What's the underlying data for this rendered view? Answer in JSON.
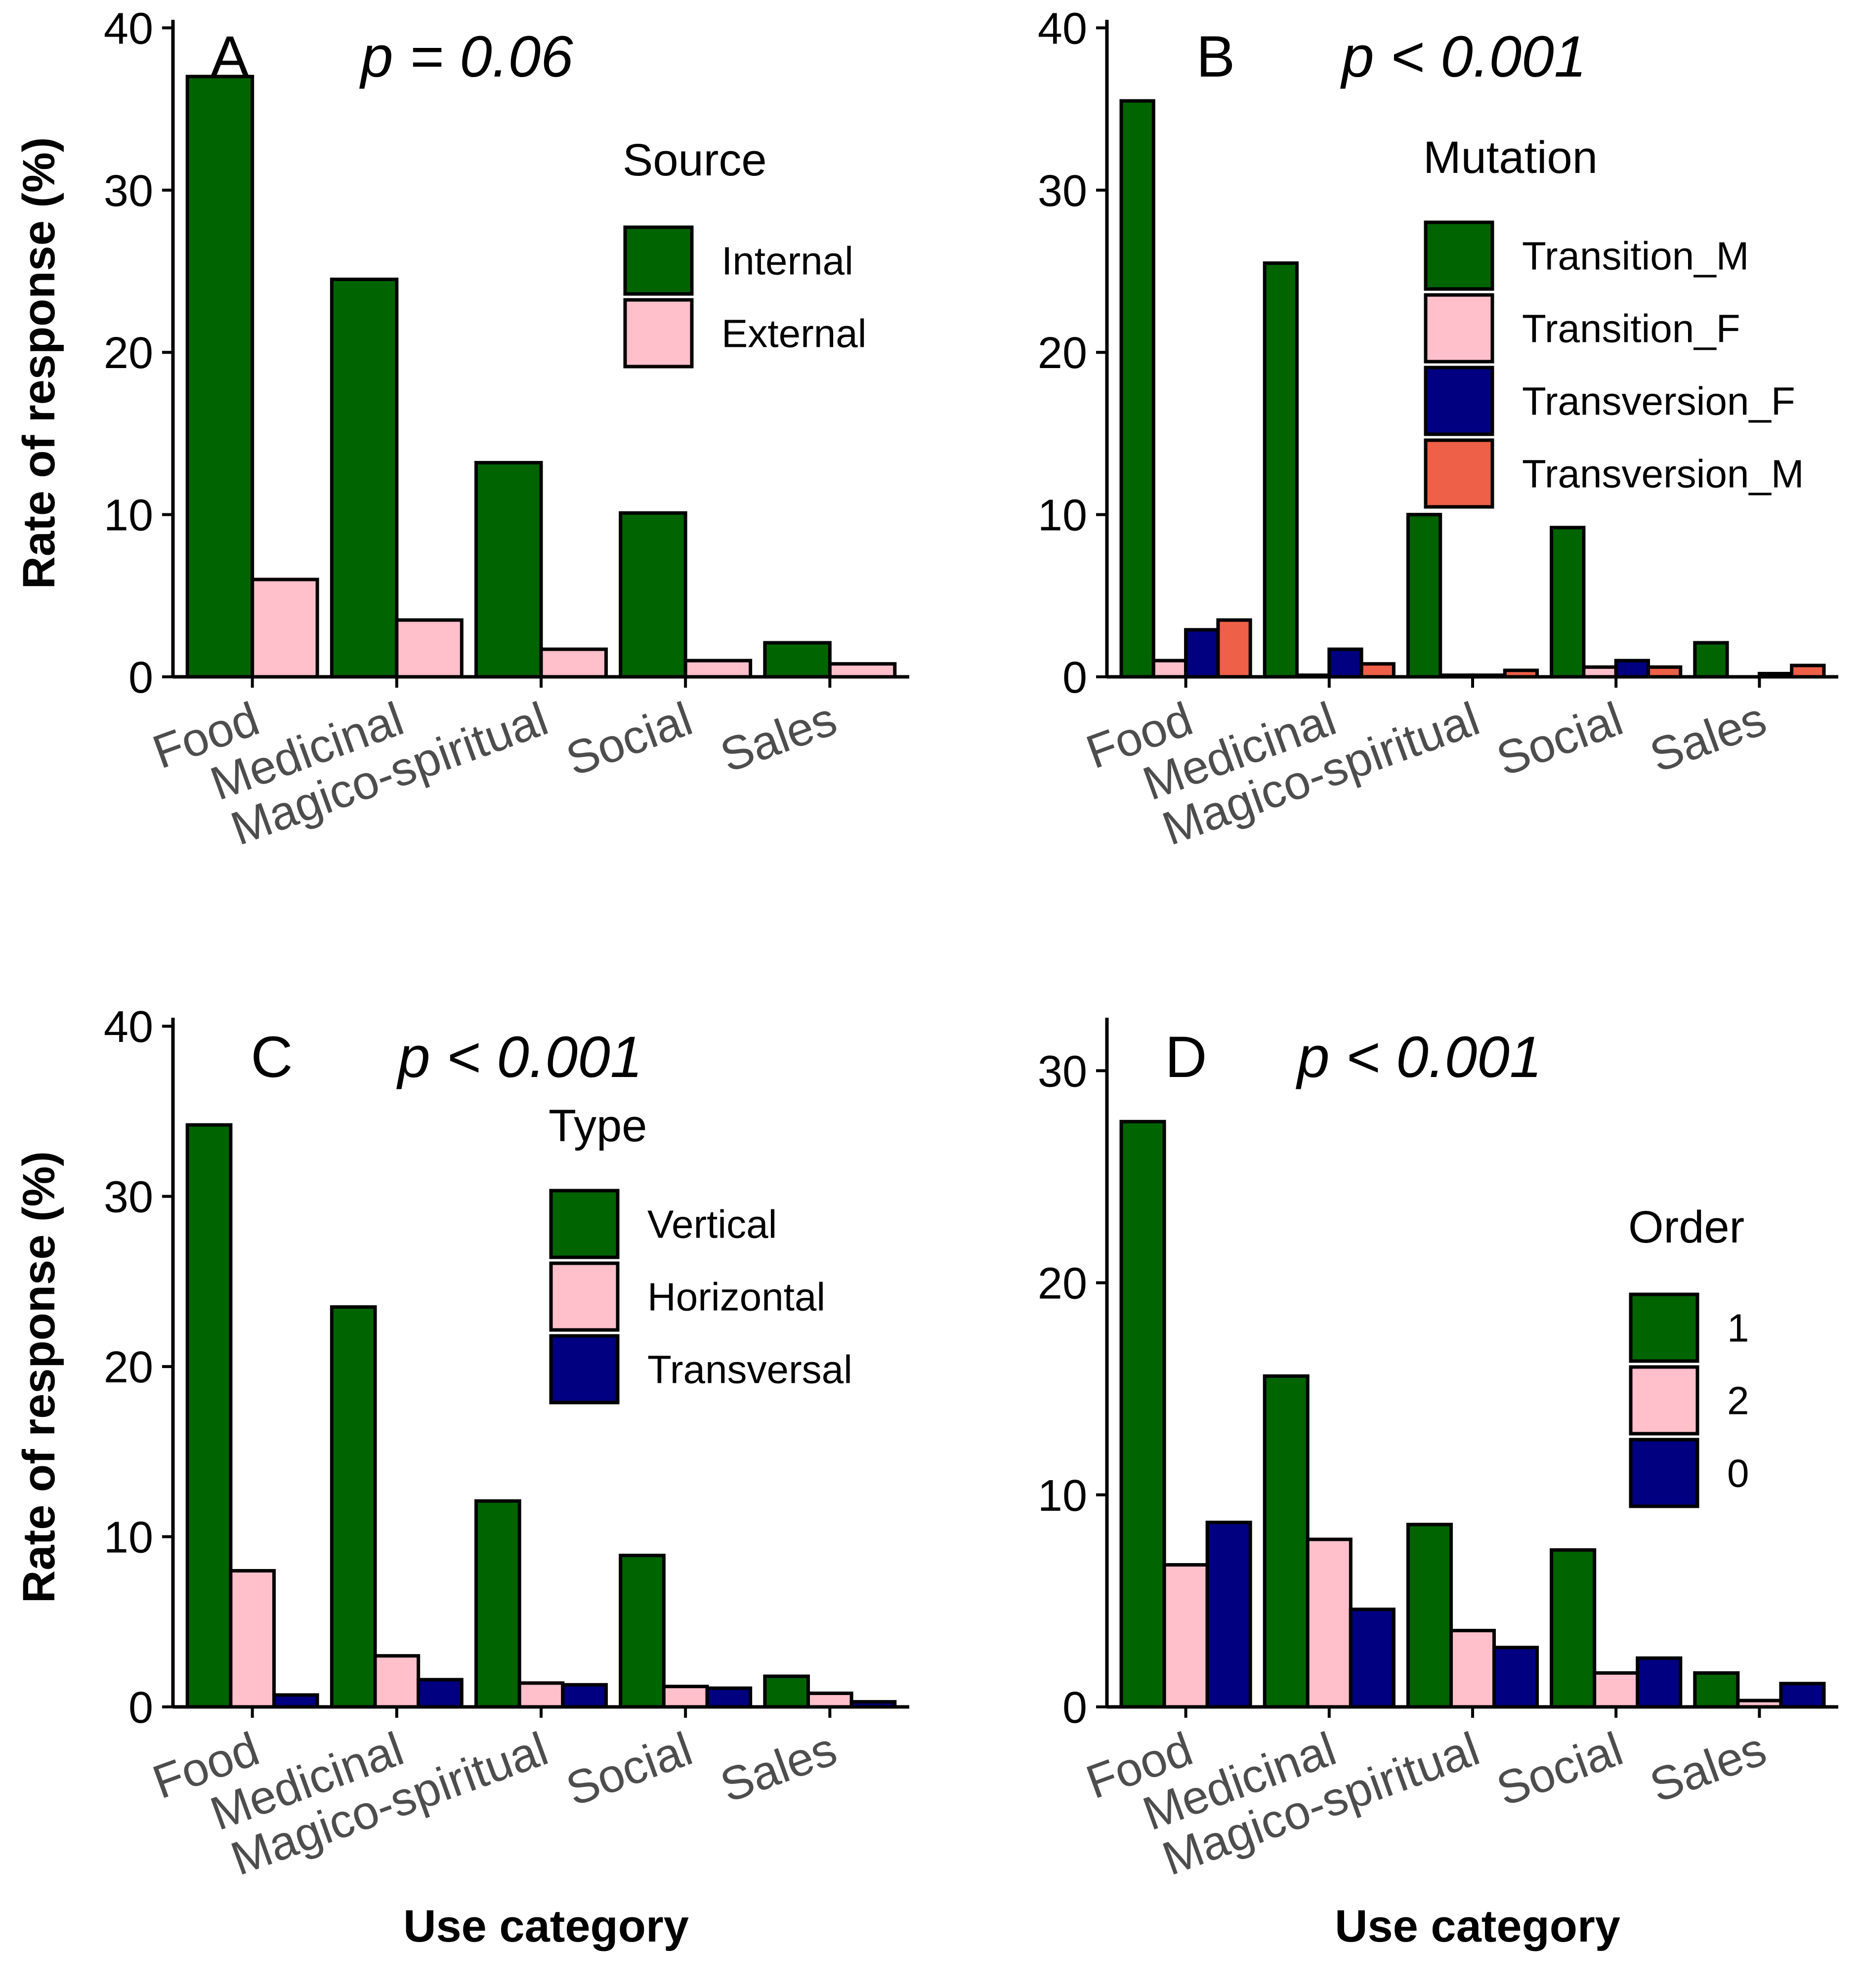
{
  "chart_data": [
    {
      "type": "bar",
      "panel": "A",
      "annotation": "p = 0.06",
      "categories": [
        "Food",
        "Medicinal",
        "Magico-spiritual",
        "Social",
        "Sales"
      ],
      "series": [
        {
          "name": "Internal",
          "color": "#006400",
          "values": [
            37.0,
            24.5,
            13.2,
            10.1,
            2.1
          ]
        },
        {
          "name": "External",
          "color": "#FFC0CB",
          "values": [
            6.0,
            3.5,
            1.7,
            1.0,
            0.8
          ]
        }
      ],
      "legend_title": "Source",
      "ylabel": "Rate of response (%)",
      "xlabel": "",
      "yticks": [
        0,
        10,
        20,
        30,
        40
      ],
      "ylim": [
        0,
        40.5
      ],
      "legend_position": "top-right"
    },
    {
      "type": "bar",
      "panel": "B",
      "annotation": "p < 0.001",
      "categories": [
        "Food",
        "Medicinal",
        "Magico-spiritual",
        "Social",
        "Sales"
      ],
      "series": [
        {
          "name": "Transition_M",
          "color": "#006400",
          "values": [
            35.5,
            25.5,
            10.0,
            9.2,
            2.1
          ]
        },
        {
          "name": "Transition_F",
          "color": "#FFC0CB",
          "values": [
            1.0,
            0.1,
            0.1,
            0.6,
            0.0
          ]
        },
        {
          "name": "Transversion_F",
          "color": "#000080",
          "values": [
            2.9,
            1.7,
            0.1,
            1.0,
            0.2
          ]
        },
        {
          "name": "Transversion_M",
          "color": "#EE6048",
          "values": [
            3.5,
            0.8,
            0.4,
            0.6,
            0.7
          ]
        }
      ],
      "legend_title": "Mutation",
      "ylabel": "",
      "xlabel": "",
      "yticks": [
        0,
        10,
        20,
        30,
        40
      ],
      "ylim": [
        0,
        40.5
      ],
      "legend_position": "top-right"
    },
    {
      "type": "bar",
      "panel": "C",
      "annotation": "p < 0.001",
      "categories": [
        "Food",
        "Medicinal",
        "Magico-spiritual",
        "Social",
        "Sales"
      ],
      "series": [
        {
          "name": "Vertical",
          "color": "#006400",
          "values": [
            34.2,
            23.5,
            12.1,
            8.9,
            1.8
          ]
        },
        {
          "name": "Horizontal",
          "color": "#FFC0CB",
          "values": [
            8.0,
            3.0,
            1.4,
            1.2,
            0.8
          ]
        },
        {
          "name": "Transversal",
          "color": "#000080",
          "values": [
            0.7,
            1.6,
            1.3,
            1.1,
            0.3
          ]
        }
      ],
      "legend_title": "Type",
      "ylabel": "Rate of response (%)",
      "xlabel": "Use category",
      "yticks": [
        0,
        10,
        20,
        30,
        40
      ],
      "ylim": [
        0,
        40.5
      ],
      "legend_position": "top-right"
    },
    {
      "type": "bar",
      "panel": "D",
      "annotation": "p < 0.001",
      "categories": [
        "Food",
        "Medicinal",
        "Magico-spiritual",
        "Social",
        "Sales"
      ],
      "series": [
        {
          "name": "1",
          "color": "#006400",
          "values": [
            27.6,
            15.6,
            8.6,
            7.4,
            1.6
          ]
        },
        {
          "name": "2",
          "color": "#FFC0CB",
          "values": [
            6.7,
            7.9,
            3.6,
            1.6,
            0.3
          ]
        },
        {
          "name": "0",
          "color": "#000080",
          "values": [
            8.7,
            4.6,
            2.8,
            2.3,
            1.1
          ]
        }
      ],
      "legend_title": "Order",
      "ylabel": "",
      "xlabel": "Use category",
      "yticks": [
        0,
        10,
        20,
        30
      ],
      "ylim": [
        0,
        32.5
      ],
      "legend_position": "right"
    }
  ]
}
